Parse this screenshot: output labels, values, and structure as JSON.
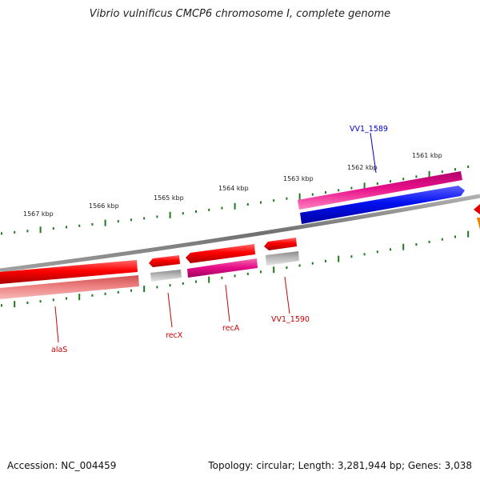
{
  "title": "Vibrio vulnificus CMCP6 chromosome I, complete genome",
  "footer": {
    "accession": "Accession: NC_004459",
    "topology": "Topology: circular; Length: 3,281,944 bp; Genes: 3,038"
  },
  "kbp_labels": [
    "1567 kbp",
    "1566 kbp",
    "1565 kbp",
    "1564 kbp",
    "1563 kbp",
    "1562 kbp",
    "1561 kbp"
  ],
  "gene_labels": [
    {
      "name": "alaS",
      "color": "#cc0000"
    },
    {
      "name": "recX",
      "color": "#cc0000"
    },
    {
      "name": "recA",
      "color": "#cc0000"
    },
    {
      "name": "VV1_1590",
      "color": "#cc0000"
    },
    {
      "name": "VV1_1589",
      "color": "#0000cc"
    }
  ],
  "colors": {
    "backbone": "#8a8a8a",
    "tick": "#1e7a1e",
    "gene_red": "#e00000",
    "gene_pink": "#e0208a",
    "gene_blue": "#0010e0",
    "gene_grey": "#b0b0b0",
    "gene_salmon": "#ec8080"
  }
}
